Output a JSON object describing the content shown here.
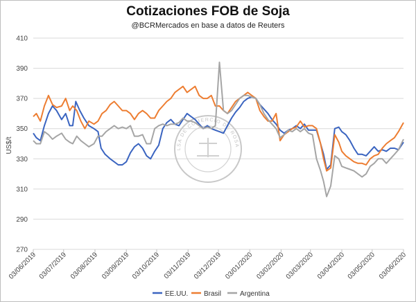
{
  "title": "Cotizaciones FOB de Soja",
  "subtitle": "@BCRMercados en base a datos de Reuters",
  "watermark_text": "BOLSA DE COMERCIO DE ROSARIO",
  "colors": {
    "eeuu": "#3a64c0",
    "brasil": "#ed7d31",
    "argentina": "#a5a5a5",
    "grid": "#d9d9d9"
  },
  "chart_data": {
    "type": "line",
    "ylabel": "US$/t",
    "xlabel": "",
    "ylim": [
      270,
      410
    ],
    "yticks": [
      270,
      290,
      310,
      330,
      350,
      370,
      390,
      410
    ],
    "xlim": [
      "2019-06-03",
      "2020-06-03"
    ],
    "xticks": [
      "03/06/2019",
      "03/07/2019",
      "03/08/2019",
      "03/09/2019",
      "03/10/2019",
      "03/11/2019",
      "03/12/2019",
      "03/01/2020",
      "03/02/2020",
      "03/03/2020",
      "03/04/2020",
      "03/05/2020",
      "03/06/2020"
    ],
    "grid": "horizontal",
    "legend": "bottom",
    "series": [
      {
        "name": "EE.UU.",
        "color": "#3a64c0",
        "points": [
          [
            "2019-06-03",
            347
          ],
          [
            "2019-06-06",
            344
          ],
          [
            "2019-06-10",
            342
          ],
          [
            "2019-06-14",
            352
          ],
          [
            "2019-06-18",
            360
          ],
          [
            "2019-06-22",
            365
          ],
          [
            "2019-06-26",
            362
          ],
          [
            "2019-07-01",
            356
          ],
          [
            "2019-07-05",
            360
          ],
          [
            "2019-07-09",
            352
          ],
          [
            "2019-07-12",
            352
          ],
          [
            "2019-07-15",
            368
          ],
          [
            "2019-07-19",
            362
          ],
          [
            "2019-07-23",
            357
          ],
          [
            "2019-07-28",
            352
          ],
          [
            "2019-08-02",
            350
          ],
          [
            "2019-08-06",
            348
          ],
          [
            "2019-08-09",
            337
          ],
          [
            "2019-08-13",
            333
          ],
          [
            "2019-08-18",
            330
          ],
          [
            "2019-08-22",
            328
          ],
          [
            "2019-08-26",
            326
          ],
          [
            "2019-08-30",
            326
          ],
          [
            "2019-09-03",
            328
          ],
          [
            "2019-09-07",
            334
          ],
          [
            "2019-09-11",
            338
          ],
          [
            "2019-09-15",
            340
          ],
          [
            "2019-09-19",
            337
          ],
          [
            "2019-09-23",
            332
          ],
          [
            "2019-09-27",
            330
          ],
          [
            "2019-10-01",
            335
          ],
          [
            "2019-10-05",
            339
          ],
          [
            "2019-10-09",
            350
          ],
          [
            "2019-10-13",
            354
          ],
          [
            "2019-10-17",
            356
          ],
          [
            "2019-10-21",
            353
          ],
          [
            "2019-10-25",
            352
          ],
          [
            "2019-10-29",
            356
          ],
          [
            "2019-11-02",
            360
          ],
          [
            "2019-11-06",
            358
          ],
          [
            "2019-11-10",
            356
          ],
          [
            "2019-11-14",
            353
          ],
          [
            "2019-11-18",
            350
          ],
          [
            "2019-11-22",
            352
          ],
          [
            "2019-11-26",
            350
          ],
          [
            "2019-11-30",
            349
          ],
          [
            "2019-12-04",
            348
          ],
          [
            "2019-12-08",
            347
          ],
          [
            "2019-12-12",
            352
          ],
          [
            "2019-12-16",
            357
          ],
          [
            "2019-12-20",
            361
          ],
          [
            "2019-12-24",
            364
          ],
          [
            "2019-12-28",
            368
          ],
          [
            "2020-01-01",
            370
          ],
          [
            "2020-01-05",
            371
          ],
          [
            "2020-01-09",
            370
          ],
          [
            "2020-01-13",
            366
          ],
          [
            "2020-01-17",
            363
          ],
          [
            "2020-01-21",
            360
          ],
          [
            "2020-01-25",
            356
          ],
          [
            "2020-01-29",
            353
          ],
          [
            "2020-02-02",
            349
          ],
          [
            "2020-02-06",
            347
          ],
          [
            "2020-02-10",
            349
          ],
          [
            "2020-02-14",
            350
          ],
          [
            "2020-02-18",
            352
          ],
          [
            "2020-02-22",
            350
          ],
          [
            "2020-02-26",
            353
          ],
          [
            "2020-03-01",
            349
          ],
          [
            "2020-03-05",
            349
          ],
          [
            "2020-03-09",
            349
          ],
          [
            "2020-03-13",
            340
          ],
          [
            "2020-03-16",
            333
          ],
          [
            "2020-03-19",
            323
          ],
          [
            "2020-03-23",
            326
          ],
          [
            "2020-03-27",
            350
          ],
          [
            "2020-03-31",
            351
          ],
          [
            "2020-04-03",
            348
          ],
          [
            "2020-04-07",
            346
          ],
          [
            "2020-04-11",
            342
          ],
          [
            "2020-04-15",
            337
          ],
          [
            "2020-04-19",
            333
          ],
          [
            "2020-04-23",
            333
          ],
          [
            "2020-04-27",
            332
          ],
          [
            "2020-05-01",
            335
          ],
          [
            "2020-05-05",
            338
          ],
          [
            "2020-05-09",
            335
          ],
          [
            "2020-05-13",
            336
          ],
          [
            "2020-05-17",
            335
          ],
          [
            "2020-05-21",
            337
          ],
          [
            "2020-05-25",
            337
          ],
          [
            "2020-05-29",
            336
          ],
          [
            "2020-06-03",
            341
          ]
        ]
      },
      {
        "name": "Brasil",
        "color": "#ed7d31",
        "points": [
          [
            "2019-06-03",
            358
          ],
          [
            "2019-06-06",
            360
          ],
          [
            "2019-06-10",
            355
          ],
          [
            "2019-06-14",
            365
          ],
          [
            "2019-06-18",
            372
          ],
          [
            "2019-06-22",
            366
          ],
          [
            "2019-06-26",
            364
          ],
          [
            "2019-07-01",
            365
          ],
          [
            "2019-07-05",
            370
          ],
          [
            "2019-07-09",
            362
          ],
          [
            "2019-07-12",
            365
          ],
          [
            "2019-07-16",
            362
          ],
          [
            "2019-07-20",
            355
          ],
          [
            "2019-07-24",
            350
          ],
          [
            "2019-07-28",
            355
          ],
          [
            "2019-08-02",
            353
          ],
          [
            "2019-08-06",
            355
          ],
          [
            "2019-08-10",
            360
          ],
          [
            "2019-08-14",
            362
          ],
          [
            "2019-08-18",
            366
          ],
          [
            "2019-08-22",
            368
          ],
          [
            "2019-08-26",
            365
          ],
          [
            "2019-08-30",
            362
          ],
          [
            "2019-09-03",
            362
          ],
          [
            "2019-09-07",
            360
          ],
          [
            "2019-09-11",
            356
          ],
          [
            "2019-09-15",
            360
          ],
          [
            "2019-09-19",
            362
          ],
          [
            "2019-09-23",
            360
          ],
          [
            "2019-09-27",
            357
          ],
          [
            "2019-10-01",
            357
          ],
          [
            "2019-10-05",
            362
          ],
          [
            "2019-10-09",
            365
          ],
          [
            "2019-10-13",
            368
          ],
          [
            "2019-10-17",
            370
          ],
          [
            "2019-10-21",
            374
          ],
          [
            "2019-10-25",
            376
          ],
          [
            "2019-10-29",
            378
          ],
          [
            "2019-11-02",
            374
          ],
          [
            "2019-11-06",
            376
          ],
          [
            "2019-11-10",
            378
          ],
          [
            "2019-11-14",
            372
          ],
          [
            "2019-11-18",
            370
          ],
          [
            "2019-11-22",
            370
          ],
          [
            "2019-11-26",
            372
          ],
          [
            "2019-11-30",
            365
          ],
          [
            "2019-12-04",
            365
          ],
          [
            "2019-12-08",
            362
          ],
          [
            "2019-12-12",
            360
          ],
          [
            "2019-12-16",
            364
          ],
          [
            "2019-12-20",
            368
          ],
          [
            "2019-12-24",
            370
          ],
          [
            "2019-12-28",
            372
          ],
          [
            "2020-01-01",
            374
          ],
          [
            "2020-01-05",
            372
          ],
          [
            "2020-01-09",
            370
          ],
          [
            "2020-01-13",
            362
          ],
          [
            "2020-01-17",
            358
          ],
          [
            "2020-01-21",
            355
          ],
          [
            "2020-01-25",
            355
          ],
          [
            "2020-01-29",
            360
          ],
          [
            "2020-02-02",
            342
          ],
          [
            "2020-02-06",
            346
          ],
          [
            "2020-02-10",
            348
          ],
          [
            "2020-02-14",
            350
          ],
          [
            "2020-02-18",
            351
          ],
          [
            "2020-02-22",
            355
          ],
          [
            "2020-02-26",
            351
          ],
          [
            "2020-03-01",
            352
          ],
          [
            "2020-03-05",
            352
          ],
          [
            "2020-03-09",
            350
          ],
          [
            "2020-03-13",
            340
          ],
          [
            "2020-03-16",
            330
          ],
          [
            "2020-03-19",
            322
          ],
          [
            "2020-03-23",
            324
          ],
          [
            "2020-03-27",
            346
          ],
          [
            "2020-03-31",
            341
          ],
          [
            "2020-04-03",
            335
          ],
          [
            "2020-04-07",
            332
          ],
          [
            "2020-04-11",
            330
          ],
          [
            "2020-04-15",
            328
          ],
          [
            "2020-04-19",
            327
          ],
          [
            "2020-04-23",
            327
          ],
          [
            "2020-04-27",
            326
          ],
          [
            "2020-05-01",
            330
          ],
          [
            "2020-05-05",
            332
          ],
          [
            "2020-05-09",
            333
          ],
          [
            "2020-05-13",
            337
          ],
          [
            "2020-05-17",
            340
          ],
          [
            "2020-05-21",
            342
          ],
          [
            "2020-05-25",
            344
          ],
          [
            "2020-05-29",
            348
          ],
          [
            "2020-06-03",
            354
          ]
        ]
      },
      {
        "name": "Argentina",
        "color": "#a5a5a5",
        "points": [
          [
            "2019-06-03",
            342
          ],
          [
            "2019-06-06",
            340
          ],
          [
            "2019-06-10",
            340
          ],
          [
            "2019-06-14",
            348
          ],
          [
            "2019-06-18",
            346
          ],
          [
            "2019-06-22",
            343
          ],
          [
            "2019-06-26",
            345
          ],
          [
            "2019-07-01",
            347
          ],
          [
            "2019-07-05",
            343
          ],
          [
            "2019-07-09",
            341
          ],
          [
            "2019-07-12",
            340
          ],
          [
            "2019-07-16",
            345
          ],
          [
            "2019-07-20",
            342
          ],
          [
            "2019-07-24",
            340
          ],
          [
            "2019-07-28",
            338
          ],
          [
            "2019-08-02",
            340
          ],
          [
            "2019-08-06",
            345
          ],
          [
            "2019-08-10",
            345
          ],
          [
            "2019-08-14",
            348
          ],
          [
            "2019-08-18",
            350
          ],
          [
            "2019-08-22",
            352
          ],
          [
            "2019-08-26",
            350
          ],
          [
            "2019-08-30",
            351
          ],
          [
            "2019-09-03",
            350
          ],
          [
            "2019-09-07",
            352
          ],
          [
            "2019-09-11",
            345
          ],
          [
            "2019-09-15",
            345
          ],
          [
            "2019-09-19",
            346
          ],
          [
            "2019-09-23",
            340
          ],
          [
            "2019-09-27",
            340
          ],
          [
            "2019-10-01",
            350
          ],
          [
            "2019-10-05",
            352
          ],
          [
            "2019-10-09",
            353
          ],
          [
            "2019-10-13",
            352
          ],
          [
            "2019-10-17",
            353
          ],
          [
            "2019-10-21",
            353
          ],
          [
            "2019-10-25",
            354
          ],
          [
            "2019-10-29",
            357
          ],
          [
            "2019-11-02",
            355
          ],
          [
            "2019-11-06",
            355
          ],
          [
            "2019-11-10",
            354
          ],
          [
            "2019-11-14",
            352
          ],
          [
            "2019-11-18",
            350
          ],
          [
            "2019-11-22",
            351
          ],
          [
            "2019-11-26",
            350
          ],
          [
            "2019-11-30",
            352
          ],
          [
            "2019-12-04",
            394
          ],
          [
            "2019-12-08",
            362
          ],
          [
            "2019-12-12",
            360
          ],
          [
            "2019-12-16",
            362
          ],
          [
            "2019-12-20",
            366
          ],
          [
            "2019-12-24",
            370
          ],
          [
            "2019-12-28",
            372
          ],
          [
            "2020-01-01",
            372
          ],
          [
            "2020-01-05",
            371
          ],
          [
            "2020-01-09",
            370
          ],
          [
            "2020-01-13",
            366
          ],
          [
            "2020-01-17",
            360
          ],
          [
            "2020-01-21",
            356
          ],
          [
            "2020-01-25",
            353
          ],
          [
            "2020-01-29",
            350
          ],
          [
            "2020-02-02",
            344
          ],
          [
            "2020-02-06",
            346
          ],
          [
            "2020-02-10",
            349
          ],
          [
            "2020-02-14",
            348
          ],
          [
            "2020-02-18",
            350
          ],
          [
            "2020-02-22",
            348
          ],
          [
            "2020-02-26",
            350
          ],
          [
            "2020-03-01",
            347
          ],
          [
            "2020-03-05",
            346
          ],
          [
            "2020-03-09",
            330
          ],
          [
            "2020-03-13",
            322
          ],
          [
            "2020-03-16",
            315
          ],
          [
            "2020-03-19",
            305
          ],
          [
            "2020-03-23",
            312
          ],
          [
            "2020-03-27",
            332
          ],
          [
            "2020-03-31",
            330
          ],
          [
            "2020-04-03",
            325
          ],
          [
            "2020-04-07",
            324
          ],
          [
            "2020-04-11",
            323
          ],
          [
            "2020-04-15",
            322
          ],
          [
            "2020-04-19",
            320
          ],
          [
            "2020-04-23",
            318
          ],
          [
            "2020-04-27",
            320
          ],
          [
            "2020-05-01",
            325
          ],
          [
            "2020-05-05",
            327
          ],
          [
            "2020-05-09",
            330
          ],
          [
            "2020-05-13",
            330
          ],
          [
            "2020-05-17",
            327
          ],
          [
            "2020-05-21",
            330
          ],
          [
            "2020-05-25",
            333
          ],
          [
            "2020-05-29",
            336
          ],
          [
            "2020-06-03",
            343
          ]
        ]
      }
    ]
  }
}
